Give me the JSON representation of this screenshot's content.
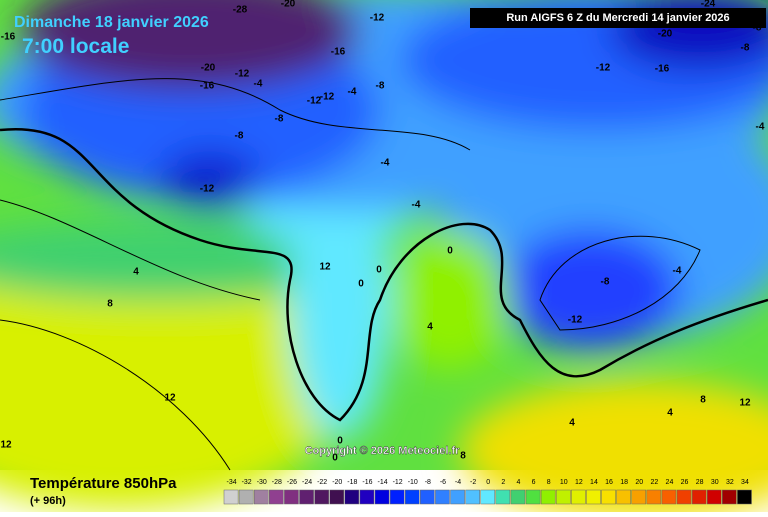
{
  "header": {
    "date": "Dimanche 18 janvier 2026",
    "time": "7:00 locale",
    "run": "Run AIGFS 6 Z du Mercredi 14 janvier 2026"
  },
  "footer": {
    "title": "Température 850hPa",
    "lead": "(+ 96h)",
    "copyright": "Copyright © 2026 Meteociel.fr"
  },
  "contour_labels": [
    "-16",
    "-28",
    "-20",
    "-12",
    "-16",
    "-20",
    "-16",
    "-12",
    "-4",
    "-8",
    "-12",
    "-12",
    "-4",
    "-8",
    "-8",
    "-12",
    "-4",
    "-4",
    "-12",
    "-16",
    "-20",
    "-8",
    "-8",
    "-24",
    "-4",
    "-8",
    "-4",
    "-12",
    "4",
    "8",
    "0",
    "0",
    "12",
    "0",
    "4",
    "4",
    "4",
    "8",
    "12",
    "12",
    "12",
    "8",
    "0",
    "0"
  ],
  "legend": {
    "values": [
      -34,
      -32,
      -30,
      -28,
      -26,
      -24,
      -22,
      -20,
      -18,
      -16,
      -14,
      -12,
      -10,
      -8,
      -6,
      -4,
      -2,
      0,
      2,
      4,
      6,
      8,
      10,
      12,
      14,
      16,
      18,
      20,
      22,
      24,
      26,
      28,
      30,
      32,
      34
    ],
    "colors": [
      "#d0d0d0",
      "#b0b0b0",
      "#a080a0",
      "#904090",
      "#803080",
      "#602070",
      "#501860",
      "#401050",
      "#200080",
      "#2000c0",
      "#0000e0",
      "#0020ff",
      "#0040ff",
      "#2060ff",
      "#3080ff",
      "#40a0ff",
      "#50c0ff",
      "#60e8ff",
      "#40e0b0",
      "#40d070",
      "#50e040",
      "#90f000",
      "#c0f000",
      "#e0f000",
      "#f0f000",
      "#f8e000",
      "#f8c000",
      "#f8a000",
      "#f88000",
      "#f86000",
      "#f04000",
      "#e02000",
      "#d00000",
      "#a00000",
      "#000000"
    ]
  }
}
